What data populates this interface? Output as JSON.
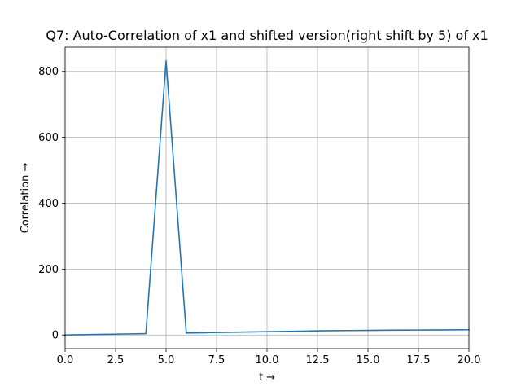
{
  "chart_data": {
    "type": "line",
    "title": "Q7: Auto-Correlation of x1 and shifted version(right shift by 5) of x1",
    "xlabel": "t →",
    "ylabel": "Correlation →",
    "xlim": [
      0,
      20
    ],
    "ylim": [
      -41.5,
      873.5
    ],
    "x_ticks": [
      0,
      2.5,
      5,
      7.5,
      10,
      12.5,
      15,
      17.5,
      20
    ],
    "x_tick_labels": [
      "0.0",
      "2.5",
      "5.0",
      "7.5",
      "10.0",
      "12.5",
      "15.0",
      "17.5",
      "20.0"
    ],
    "y_ticks": [
      0,
      200,
      400,
      600,
      800
    ],
    "y_tick_labels": [
      "0",
      "200",
      "400",
      "600",
      "800"
    ],
    "grid": true,
    "series": [
      {
        "color": "#1f77b4",
        "x": [
          0,
          1,
          2,
          3,
          4,
          5,
          6,
          7,
          8,
          9,
          10,
          11,
          12,
          13,
          14,
          15,
          16,
          17,
          18,
          19,
          20
        ],
        "y": [
          0,
          1,
          2,
          3,
          4,
          832,
          6,
          7,
          8,
          9,
          10,
          11,
          12,
          13,
          13.5,
          14,
          14.5,
          15,
          15.3,
          15.6,
          16
        ]
      }
    ]
  }
}
